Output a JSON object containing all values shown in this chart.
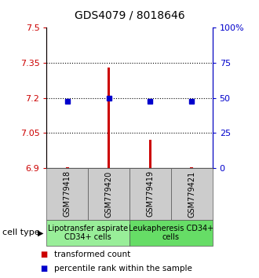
{
  "title": "GDS4079 / 8018646",
  "samples": [
    "GSM779418",
    "GSM779420",
    "GSM779419",
    "GSM779421"
  ],
  "red_values": [
    6.903,
    7.33,
    7.02,
    6.903
  ],
  "blue_values": [
    7.185,
    7.2,
    7.187,
    7.185
  ],
  "ylim_left": [
    6.9,
    7.5
  ],
  "ylim_right": [
    0,
    100
  ],
  "left_ticks": [
    6.9,
    7.05,
    7.2,
    7.35,
    7.5
  ],
  "right_ticks": [
    0,
    25,
    50,
    75,
    100
  ],
  "right_tick_labels": [
    "0",
    "25",
    "50",
    "75",
    "100%"
  ],
  "dotted_lines": [
    7.05,
    7.2,
    7.35
  ],
  "group1_label": "Lipotransfer aspirate\nCD34+ cells",
  "group2_label": "Leukapheresis CD34+\ncells",
  "group1_bg": "#99ee99",
  "group2_bg": "#66dd66",
  "sample_box_bg": "#cccccc",
  "legend_red_label": "transformed count",
  "legend_blue_label": "percentile rank within the sample",
  "red_color": "#cc0000",
  "blue_color": "#0000cc",
  "title_fontsize": 10,
  "tick_fontsize": 8,
  "sample_fontsize": 7,
  "cell_label_fontsize": 7,
  "legend_fontsize": 7.5
}
